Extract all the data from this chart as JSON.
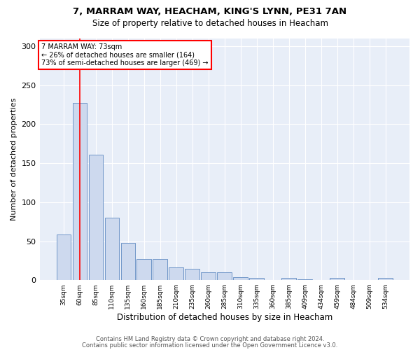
{
  "title": "7, MARRAM WAY, HEACHAM, KING'S LYNN, PE31 7AN",
  "subtitle": "Size of property relative to detached houses in Heacham",
  "xlabel": "Distribution of detached houses by size in Heacham",
  "ylabel": "Number of detached properties",
  "bar_labels": [
    "35sqm",
    "60sqm",
    "85sqm",
    "110sqm",
    "135sqm",
    "160sqm",
    "185sqm",
    "210sqm",
    "235sqm",
    "260sqm",
    "285sqm",
    "310sqm",
    "335sqm",
    "360sqm",
    "385sqm",
    "409sqm",
    "434sqm",
    "459sqm",
    "484sqm",
    "509sqm",
    "534sqm"
  ],
  "bar_heights": [
    59,
    227,
    161,
    80,
    48,
    27,
    27,
    16,
    15,
    10,
    10,
    4,
    3,
    0,
    3,
    1,
    0,
    3,
    0,
    0,
    3
  ],
  "bar_color": "#cdd9ee",
  "bar_edge_color": "#7096c8",
  "red_line_x": 1.0,
  "annotation_line1": "7 MARRAM WAY: 73sqm",
  "annotation_line2": "← 26% of detached houses are smaller (164)",
  "annotation_line3": "73% of semi-detached houses are larger (469) →",
  "ylim": [
    0,
    310
  ],
  "yticks": [
    0,
    50,
    100,
    150,
    200,
    250,
    300
  ],
  "footer_line1": "Contains HM Land Registry data © Crown copyright and database right 2024.",
  "footer_line2": "Contains public sector information licensed under the Open Government Licence v3.0.",
  "bg_color": "#ffffff",
  "plot_bg_color": "#e8eef8"
}
